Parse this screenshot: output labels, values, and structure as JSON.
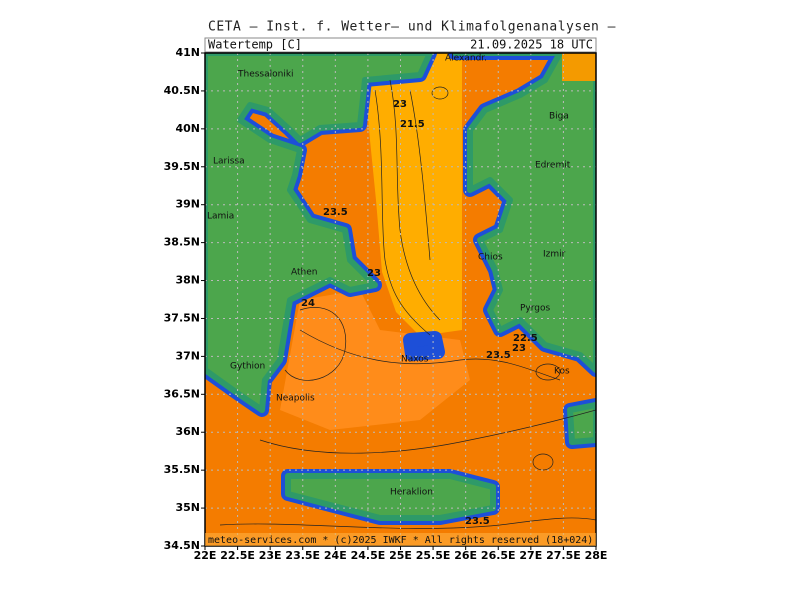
{
  "header": {
    "title": "CETA — Inst. f. Wetter— und Klimafolgenanalysen —",
    "variable": "Watertemp [C]",
    "time": "21.09.2025 18 UTC"
  },
  "map": {
    "lon_lim": [
      22,
      28
    ],
    "lat_lim": [
      34.5,
      41
    ],
    "lon_ticks": [
      {
        "value": 22,
        "label": "22E"
      },
      {
        "value": 22.5,
        "label": "22.5E"
      },
      {
        "value": 23,
        "label": "23E"
      },
      {
        "value": 23.5,
        "label": "23.5E"
      },
      {
        "value": 24,
        "label": "24E"
      },
      {
        "value": 24.5,
        "label": "24.5E"
      },
      {
        "value": 25,
        "label": "25E"
      },
      {
        "value": 25.5,
        "label": "25.5E"
      },
      {
        "value": 26,
        "label": "26E"
      },
      {
        "value": 26.5,
        "label": "26.5E"
      },
      {
        "value": 27,
        "label": "27E"
      },
      {
        "value": 27.5,
        "label": "27.5E"
      },
      {
        "value": 28,
        "label": "28E"
      }
    ],
    "lat_ticks": [
      {
        "value": 34.5,
        "label": "34.5N"
      },
      {
        "value": 35,
        "label": "35N"
      },
      {
        "value": 35.5,
        "label": "35.5N"
      },
      {
        "value": 36,
        "label": "36N"
      },
      {
        "value": 36.5,
        "label": "36.5N"
      },
      {
        "value": 37,
        "label": "37N"
      },
      {
        "value": 37.5,
        "label": "37.5N"
      },
      {
        "value": 38,
        "label": "38N"
      },
      {
        "value": 38.5,
        "label": "38.5N"
      },
      {
        "value": 39,
        "label": "39N"
      },
      {
        "value": 39.5,
        "label": "39.5N"
      },
      {
        "value": 40,
        "label": "40N"
      },
      {
        "value": 40.5,
        "label": "40.5N"
      },
      {
        "value": 41,
        "label": "41N"
      }
    ],
    "cities": [
      "Thessaloniki",
      "Alexandr.",
      "Biga",
      "Larissa",
      "Edremit",
      "Lamia",
      "Izmir",
      "Athen",
      "Chios",
      "Pyrgos",
      "Gythion",
      "Naxos",
      "Kos",
      "Neapolis",
      "Heraklion"
    ],
    "contour_labels": [
      "23",
      "21.5",
      "23.5",
      "23",
      "24",
      "22.5",
      "23",
      "23.5",
      "23.5"
    ]
  },
  "footer": "meteo-services.com * (c)2025 IWKF * All rights reserved  (18+024)"
}
